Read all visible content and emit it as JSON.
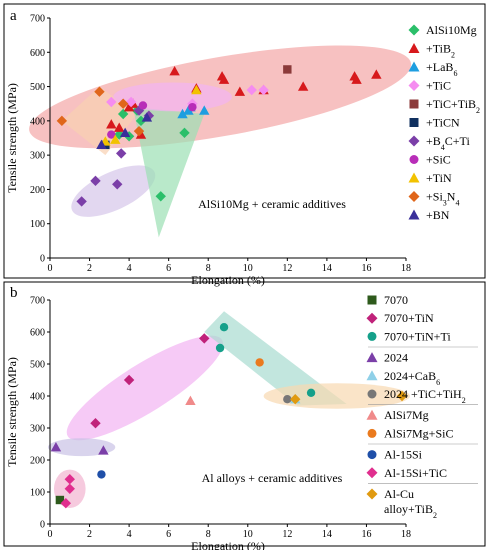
{
  "chart_data": [
    {
      "type": "scatter",
      "panel_label": "a",
      "annotation": "AlSi10Mg + ceramic additives",
      "xlabel": "Elongation (%)",
      "ylabel": "Tensile strength (MPa)",
      "xlim": [
        0,
        18
      ],
      "ylim": [
        0,
        700
      ],
      "xticks": [
        "0",
        "2",
        "4",
        "6",
        "8",
        "10",
        "12",
        "14",
        "16",
        "18"
      ],
      "yticks": [
        "0",
        "100",
        "200",
        "300",
        "400",
        "500",
        "600",
        "700"
      ],
      "grid": false,
      "legend_position": "right",
      "regions": [
        {
          "color": "#f4a6a6",
          "shape": "ellipse",
          "cx": 8.6,
          "cy": 470,
          "rx": 9.8,
          "ry": 115,
          "angle": -10
        },
        {
          "color": "#f8d0b0",
          "shape": "polygon",
          "points": [
            [
              0.6,
              400
            ],
            [
              2.5,
              500
            ],
            [
              4.4,
              420
            ],
            [
              2.8,
              300
            ]
          ]
        },
        {
          "color": "#d5c6ea",
          "shape": "ellipse",
          "cx": 3.2,
          "cy": 195,
          "rx": 2.3,
          "ry": 55,
          "angle": -25
        },
        {
          "color": "#9be0b3",
          "shape": "polygon",
          "points": [
            [
              4.2,
              440
            ],
            [
              7.8,
              420
            ],
            [
              5.5,
              60
            ]
          ]
        },
        {
          "color": "#f2b3f2",
          "shape": "ellipse",
          "cx": 6.2,
          "cy": 470,
          "rx": 3.0,
          "ry": 42,
          "angle": 0
        }
      ],
      "series": [
        {
          "name": "AlSi10Mg",
          "marker": "diamond",
          "color": "#2bbf6a",
          "points": [
            [
              3.7,
              420
            ],
            [
              4.0,
              355
            ],
            [
              4.6,
              400
            ],
            [
              4.4,
              430
            ],
            [
              6.8,
              365
            ],
            [
              5.6,
              180
            ],
            [
              3.5,
              360
            ]
          ]
        },
        {
          "name": "+TiB2",
          "marker": "triangle",
          "color": "#d7191c",
          "points": [
            [
              3.1,
              390
            ],
            [
              3.5,
              380
            ],
            [
              4.0,
              440
            ],
            [
              4.2,
              450
            ],
            [
              4.6,
              360
            ],
            [
              6.3,
              545
            ],
            [
              7.4,
              495
            ],
            [
              8.7,
              530
            ],
            [
              8.8,
              520
            ],
            [
              9.6,
              485
            ],
            [
              10.8,
              490
            ],
            [
              12.8,
              500
            ],
            [
              15.4,
              530
            ],
            [
              15.5,
              520
            ],
            [
              16.5,
              535
            ]
          ]
        },
        {
          "name": "+LaB6",
          "marker": "triangle",
          "color": "#1e9ee0",
          "points": [
            [
              6.7,
              420
            ],
            [
              7.0,
              430
            ],
            [
              7.1,
              440
            ],
            [
              7.8,
              430
            ]
          ]
        },
        {
          "name": "+TiC",
          "marker": "diamond",
          "color": "#f58cf0",
          "points": [
            [
              3.1,
              455
            ],
            [
              4.1,
              455
            ],
            [
              7.2,
              450
            ],
            [
              10.2,
              490
            ],
            [
              10.8,
              490
            ]
          ]
        },
        {
          "name": "+TiC+TiB2",
          "marker": "square",
          "color": "#8b3a3a",
          "points": [
            [
              12.0,
              550
            ]
          ]
        },
        {
          "name": "+TiCN",
          "marker": "square",
          "color": "#10305f",
          "points": [
            [
              2.8,
              330
            ]
          ]
        },
        {
          "name": "+B4C+Ti",
          "marker": "diamond",
          "color": "#7b3fa8",
          "points": [
            [
              1.6,
              165
            ],
            [
              2.3,
              225
            ],
            [
              3.4,
              215
            ],
            [
              3.6,
              305
            ],
            [
              4.5,
              430
            ],
            [
              5.0,
              415
            ]
          ]
        },
        {
          "name": "+SiC",
          "marker": "circle",
          "color": "#b82db8",
          "points": [
            [
              3.1,
              360
            ],
            [
              4.7,
              445
            ],
            [
              7.2,
              440
            ]
          ]
        },
        {
          "name": "+TiN",
          "marker": "triangle",
          "color": "#f2c200",
          "points": [
            [
              2.8,
              340
            ],
            [
              3.3,
              345
            ],
            [
              7.4,
              490
            ]
          ]
        },
        {
          "name": "+Si3N4",
          "marker": "diamond",
          "color": "#e0661b",
          "points": [
            [
              0.6,
              400
            ],
            [
              2.5,
              485
            ],
            [
              3.7,
              450
            ],
            [
              4.5,
              370
            ]
          ]
        },
        {
          "name": "+BN",
          "marker": "triangle",
          "color": "#3a2f9a",
          "points": [
            [
              2.6,
              330
            ],
            [
              3.8,
              365
            ],
            [
              4.9,
              410
            ]
          ]
        }
      ]
    },
    {
      "type": "scatter",
      "panel_label": "b",
      "annotation": "Al alloys + ceramic additives",
      "xlabel": "Elongation (%)",
      "ylabel": "Tensile strength (MPa)",
      "xlim": [
        0,
        18
      ],
      "ylim": [
        0,
        700
      ],
      "xticks": [
        "0",
        "2",
        "4",
        "6",
        "8",
        "10",
        "12",
        "14",
        "16",
        "18"
      ],
      "yticks": [
        "0",
        "100",
        "200",
        "300",
        "400",
        "500",
        "600",
        "700"
      ],
      "grid": false,
      "legend_position": "right",
      "regions": [
        {
          "color": "#f2b3f2",
          "shape": "ellipse",
          "cx": 4.8,
          "cy": 425,
          "rx": 4.6,
          "ry": 75,
          "angle": -32
        },
        {
          "color": "#a8dcd0",
          "shape": "polygon",
          "points": [
            [
              7.8,
              600
            ],
            [
              8.8,
              665
            ],
            [
              15.0,
              375
            ],
            [
              12.5,
              370
            ]
          ]
        },
        {
          "color": "#f8d8b0",
          "shape": "ellipse",
          "cx": 14.5,
          "cy": 400,
          "rx": 3.7,
          "ry": 40,
          "angle": 0
        },
        {
          "color": "#c9c2e6",
          "shape": "ellipse",
          "cx": 1.6,
          "cy": 240,
          "rx": 1.7,
          "ry": 28,
          "angle": 0
        },
        {
          "color": "#f2b3d0",
          "shape": "ellipse",
          "cx": 1.0,
          "cy": 110,
          "rx": 0.8,
          "ry": 60,
          "angle": 0
        }
      ],
      "series": [
        {
          "name": "7070",
          "marker": "square",
          "color": "#2e5a1c",
          "points": [
            [
              0.5,
              75
            ]
          ]
        },
        {
          "name": "7070+TiN",
          "marker": "diamond",
          "color": "#c0227a",
          "points": [
            [
              7.8,
              580
            ],
            [
              4.0,
              450
            ],
            [
              2.3,
              315
            ]
          ]
        },
        {
          "name": "7070+TiN+Ti",
          "marker": "circle",
          "color": "#15a08a",
          "points": [
            [
              8.6,
              550
            ],
            [
              8.8,
              615
            ],
            [
              13.2,
              410
            ]
          ]
        },
        {
          "name": "2024",
          "marker": "triangle",
          "color": "#7b3fa8",
          "points": [
            [
              0.3,
              240
            ],
            [
              2.7,
              230
            ]
          ]
        },
        {
          "name": "2024+CaB6",
          "marker": "triangle",
          "color": "#8fd0e8",
          "points": [
            [
              12.4,
              390
            ]
          ]
        },
        {
          "name": "2024 +TiC+TiH2",
          "marker": "circle",
          "color": "#777777",
          "points": [
            [
              12.0,
              390
            ]
          ]
        },
        {
          "name": "AlSi7Mg",
          "marker": "triangle",
          "color": "#f08a8a",
          "points": [
            [
              7.1,
              385
            ]
          ]
        },
        {
          "name": "AlSi7Mg+SiC",
          "marker": "circle",
          "color": "#ea7a1e",
          "points": [
            [
              10.6,
              505
            ]
          ]
        },
        {
          "name": "Al-15Si",
          "marker": "circle",
          "color": "#1f4fa8",
          "points": [
            [
              2.6,
              155
            ]
          ]
        },
        {
          "name": "Al-15Si+TiC",
          "marker": "diamond",
          "color": "#e02e8e",
          "points": [
            [
              1.0,
              140
            ],
            [
              1.0,
              110
            ],
            [
              0.8,
              65
            ]
          ]
        },
        {
          "name": "Al-Cu alloy+TiB2",
          "marker": "diamond",
          "color": "#e09a10",
          "points": [
            [
              12.4,
              390
            ],
            [
              17.8,
              400
            ]
          ]
        }
      ]
    }
  ],
  "legend_a_labels": [
    "AlSi10Mg",
    "+TiB",
    "+LaB",
    "+TiC",
    "+TiC+TiB",
    "+TiCN",
    "+B",
    "+SiC",
    "+TiN",
    "+Si",
    "+BN"
  ],
  "legend_a_subs": [
    "",
    "2",
    "6",
    "",
    "2",
    "",
    "4",
    "",
    "",
    "3",
    ""
  ],
  "legend_a_tails": [
    "",
    "",
    "",
    "",
    "",
    "",
    "C+Ti",
    "",
    "",
    "N",
    ""
  ],
  "legend_a_sub2": [
    "",
    "",
    "",
    "",
    "",
    "",
    "",
    "",
    "",
    "4",
    ""
  ],
  "legend_b_lines": [
    [
      "7070"
    ],
    [
      "7070+TiN"
    ],
    [
      "7070+TiN+Ti"
    ],
    [
      "2024"
    ],
    [
      "2024+CaB"
    ],
    [
      "2024 +TiC+TiH"
    ],
    [
      "AlSi7Mg"
    ],
    [
      "AlSi7Mg+SiC"
    ],
    [
      "Al-15Si"
    ],
    [
      "Al-15Si+TiC"
    ],
    [
      "Al-Cu",
      "alloy+TiB"
    ]
  ],
  "legend_b_subs": [
    "",
    "",
    "",
    "",
    "6",
    "2",
    "",
    "",
    "",
    "",
    "2"
  ]
}
